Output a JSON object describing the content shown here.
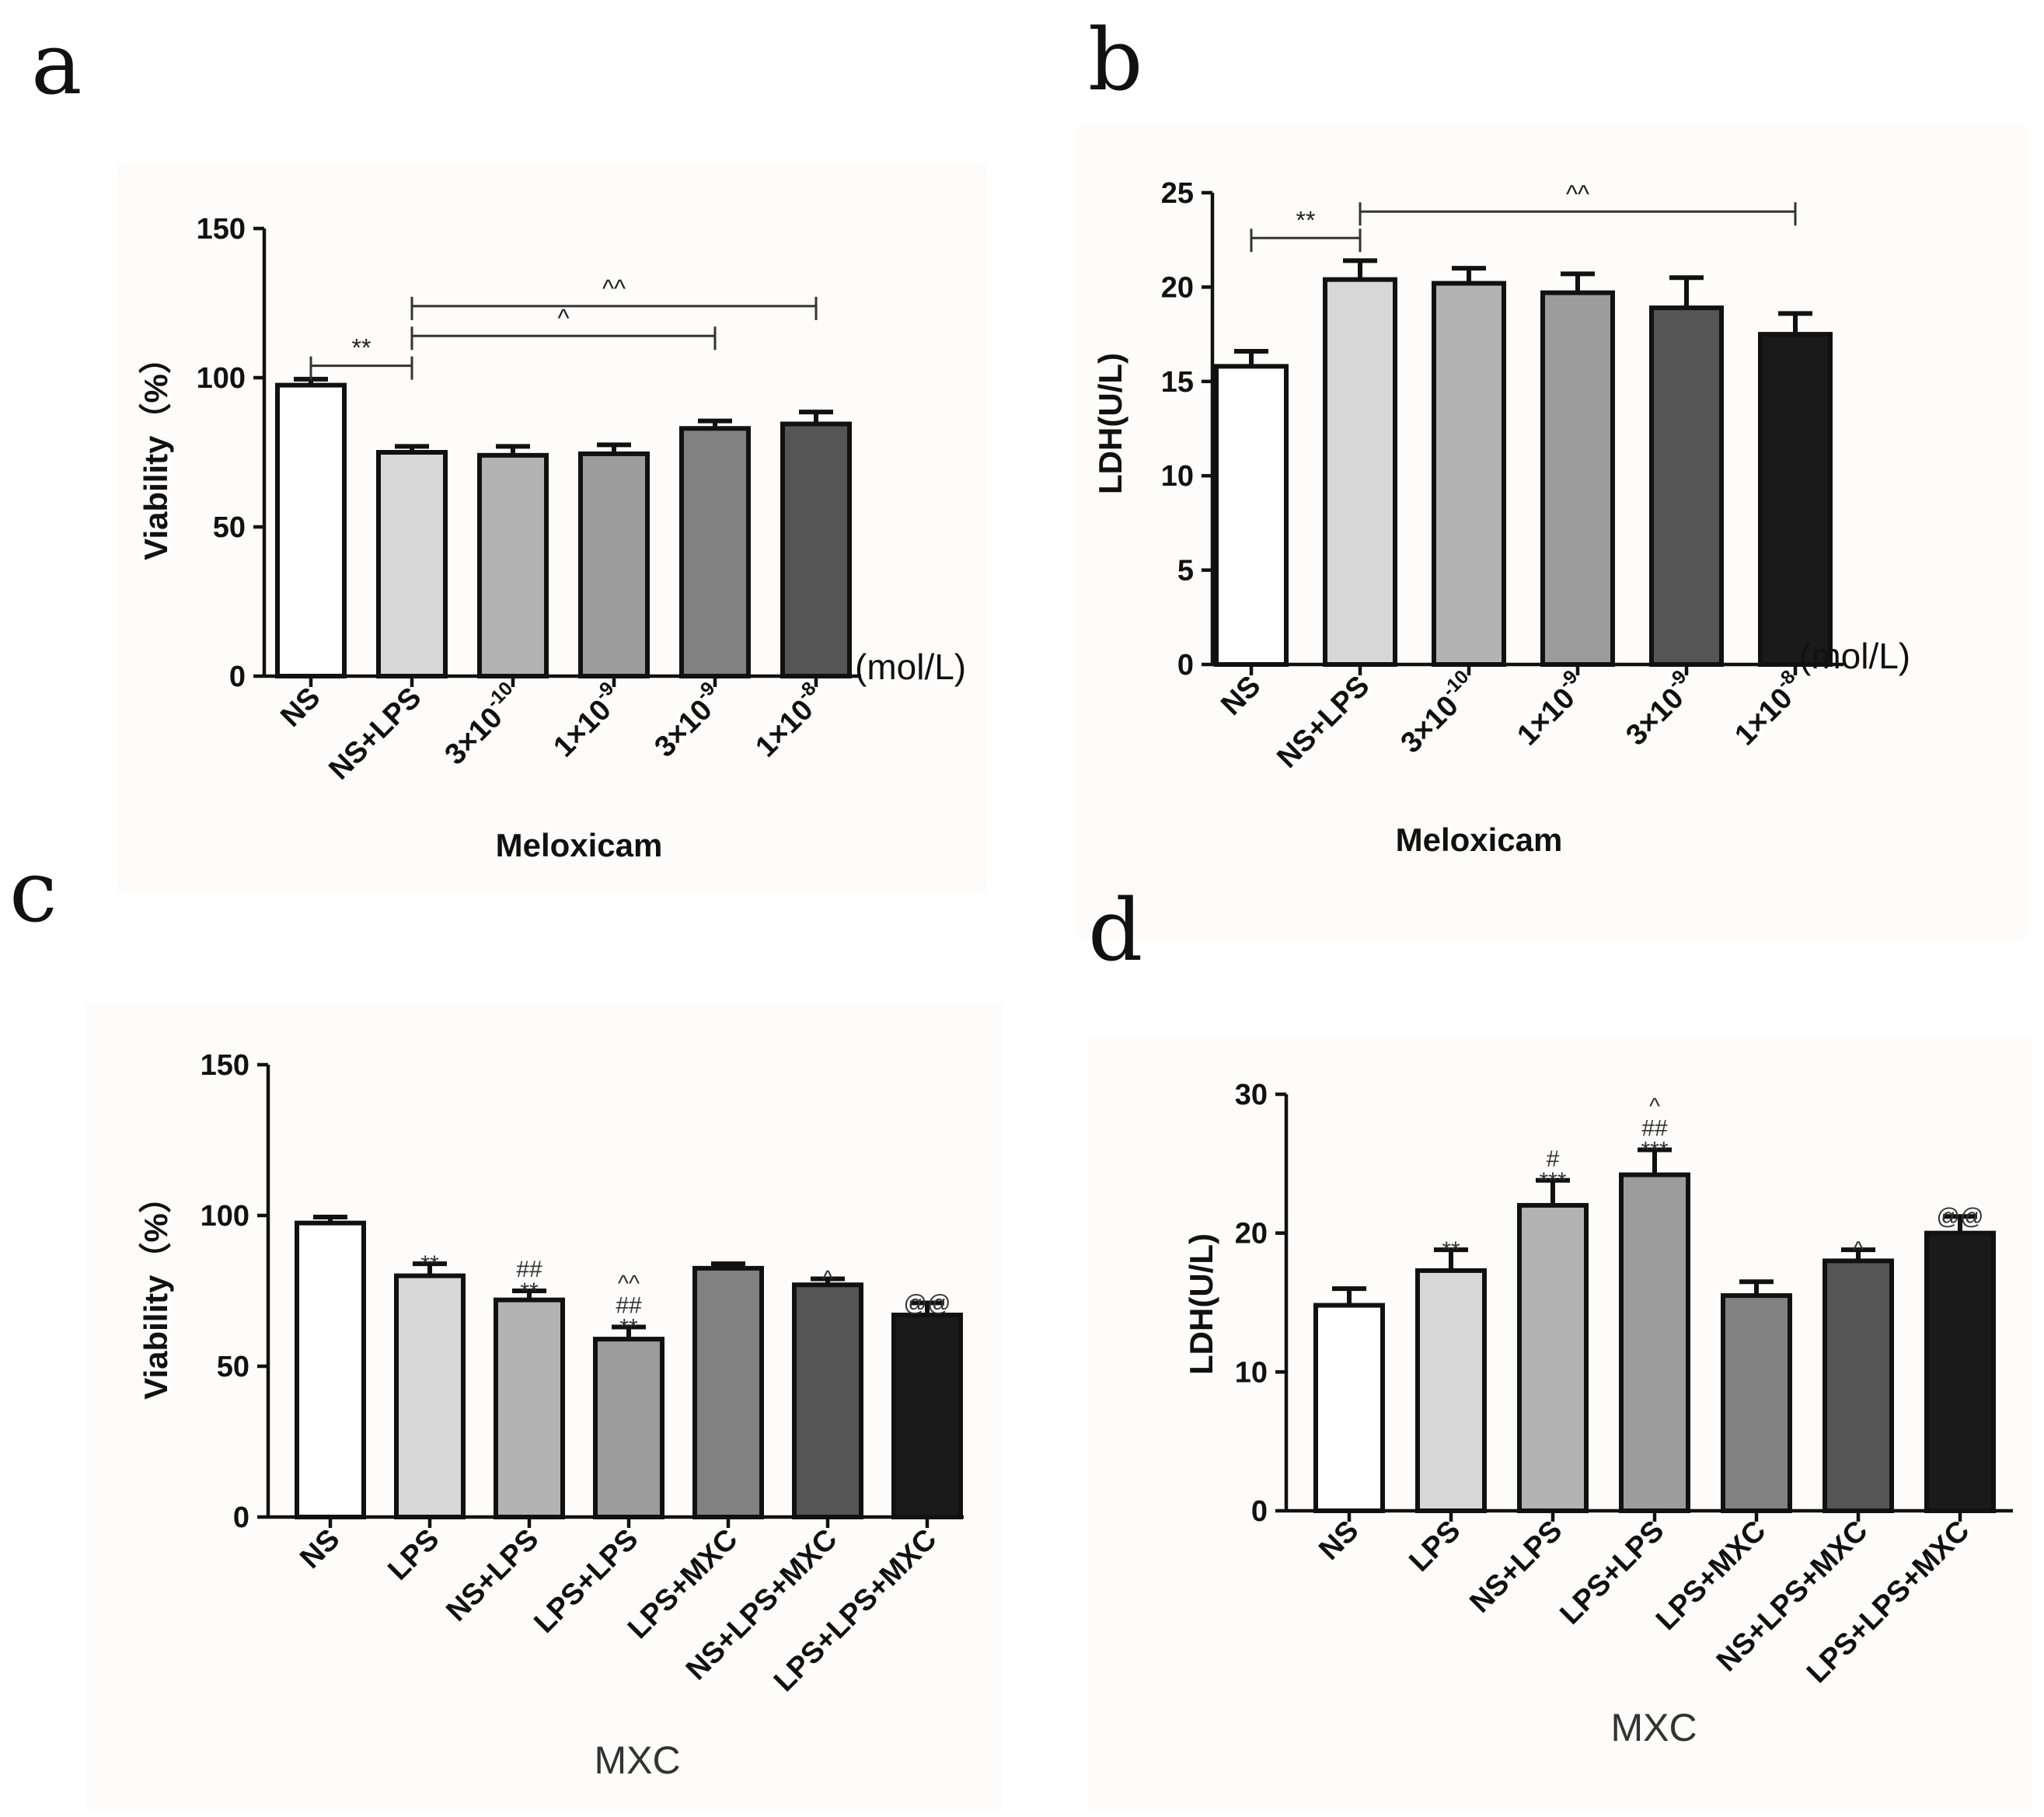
{
  "figure": {
    "panels": [
      "a",
      "b",
      "c",
      "d"
    ]
  },
  "chart_data": [
    {
      "id": "a",
      "type": "bar",
      "categories": [
        "NS",
        "NS+LPS",
        "3×10-10",
        "1×10-9",
        "3×10-9",
        "1×10-8"
      ],
      "category_labels": [
        {
          "base": "NS",
          "sup": ""
        },
        {
          "base": "NS+LPS",
          "sup": ""
        },
        {
          "base": "3×10",
          "sup": "-10"
        },
        {
          "base": "1×10",
          "sup": "-9"
        },
        {
          "base": "3×10",
          "sup": "-9"
        },
        {
          "base": "1×10",
          "sup": "-8"
        }
      ],
      "values": [
        97.5,
        75,
        74,
        74.5,
        83,
        84.5
      ],
      "errors": [
        2,
        2,
        3,
        3,
        2.5,
        4
      ],
      "colors": [
        "#ffffff",
        "#d7d7d7",
        "#b3b3b3",
        "#9c9c9c",
        "#818181",
        "#555555"
      ],
      "ylabel": "Viability（%）",
      "xlabel": "Meloxicam",
      "unit_label": "(mol/L)",
      "ylim": [
        0,
        150
      ],
      "yticks": [
        0,
        50,
        100,
        150
      ],
      "brackets": [
        {
          "from": 0,
          "to": 1,
          "y": 104,
          "label": "**"
        },
        {
          "from": 1,
          "to": 4,
          "y": 114,
          "label": "^"
        },
        {
          "from": 1,
          "to": 5,
          "y": 124,
          "label": "^^"
        }
      ],
      "annotations": []
    },
    {
      "id": "b",
      "type": "bar",
      "categories": [
        "NS",
        "NS+LPS",
        "3×10-10",
        "1×10-9",
        "3×10-9",
        "1×10-8"
      ],
      "category_labels": [
        {
          "base": "NS",
          "sup": ""
        },
        {
          "base": "NS+LPS",
          "sup": ""
        },
        {
          "base": "3×10",
          "sup": "-10"
        },
        {
          "base": "1×10",
          "sup": "-9"
        },
        {
          "base": "3×10",
          "sup": "-9"
        },
        {
          "base": "1×10",
          "sup": "-8"
        }
      ],
      "values": [
        15.8,
        20.4,
        20.2,
        19.7,
        18.9,
        17.5
      ],
      "errors": [
        0.8,
        1.0,
        0.8,
        1.0,
        1.6,
        1.1
      ],
      "colors": [
        "#ffffff",
        "#d7d7d7",
        "#b3b3b3",
        "#9c9c9c",
        "#555555",
        "#1a1a1a"
      ],
      "ylabel": "LDH(U/L)",
      "xlabel": "Meloxicam",
      "unit_label": "(mol/L)",
      "ylim": [
        0,
        25
      ],
      "yticks": [
        0,
        5,
        10,
        15,
        20,
        25
      ],
      "brackets": [
        {
          "from": 0,
          "to": 1,
          "y": 22.6,
          "label": "**"
        },
        {
          "from": 1,
          "to": 5,
          "y": 24.0,
          "label": "^^"
        }
      ],
      "annotations": []
    },
    {
      "id": "c",
      "type": "bar",
      "categories": [
        "NS",
        "LPS",
        "NS+LPS",
        "LPS+LPS",
        "LPS+MXC",
        "NS+LPS+MXC",
        "LPS+LPS+MXC"
      ],
      "category_labels": [
        {
          "base": "NS",
          "sup": ""
        },
        {
          "base": "LPS",
          "sup": ""
        },
        {
          "base": "NS+LPS",
          "sup": ""
        },
        {
          "base": "LPS+LPS",
          "sup": ""
        },
        {
          "base": "LPS+MXC",
          "sup": ""
        },
        {
          "base": "NS+LPS+MXC",
          "sup": ""
        },
        {
          "base": "LPS+LPS+MXC",
          "sup": ""
        }
      ],
      "values": [
        97.5,
        80,
        72,
        59,
        82.5,
        77,
        67
      ],
      "errors": [
        2,
        4,
        3,
        4,
        1.5,
        2,
        4
      ],
      "colors": [
        "#ffffff",
        "#d7d7d7",
        "#b3b3b3",
        "#9c9c9c",
        "#818181",
        "#555555",
        "#1a1a1a"
      ],
      "ylabel": "Viability（%）",
      "xlabel": "MXC",
      "unit_label": "",
      "ylim": [
        0,
        150
      ],
      "yticks": [
        0,
        50,
        100,
        150
      ],
      "brackets": [],
      "annotations": [
        {
          "bar": 1,
          "lines": [
            "**"
          ]
        },
        {
          "bar": 2,
          "lines": [
            "##",
            "**"
          ]
        },
        {
          "bar": 3,
          "lines": [
            "^^",
            "##",
            "**"
          ]
        },
        {
          "bar": 5,
          "lines": [
            "^"
          ]
        },
        {
          "bar": 6,
          "lines": [
            "@@"
          ]
        }
      ]
    },
    {
      "id": "d",
      "type": "bar",
      "categories": [
        "NS",
        "LPS",
        "NS+LPS",
        "LPS+LPS",
        "LPS+MXC",
        "NS+LPS+MXC",
        "LPS+LPS+MXC"
      ],
      "category_labels": [
        {
          "base": "NS",
          "sup": ""
        },
        {
          "base": "LPS",
          "sup": ""
        },
        {
          "base": "NS+LPS",
          "sup": ""
        },
        {
          "base": "LPS+LPS",
          "sup": ""
        },
        {
          "base": "LPS+MXC",
          "sup": ""
        },
        {
          "base": "NS+LPS+MXC",
          "sup": ""
        },
        {
          "base": "LPS+LPS+MXC",
          "sup": ""
        }
      ],
      "values": [
        14.8,
        17.3,
        22.0,
        24.2,
        15.5,
        18.0,
        20.0
      ],
      "errors": [
        1.2,
        1.5,
        1.8,
        1.8,
        1.0,
        0.8,
        1.2
      ],
      "colors": [
        "#ffffff",
        "#d7d7d7",
        "#b3b3b3",
        "#9c9c9c",
        "#818181",
        "#555555",
        "#1a1a1a"
      ],
      "ylabel": "LDH(U/L)",
      "xlabel": "MXC",
      "unit_label": "",
      "ylim": [
        0,
        30
      ],
      "yticks": [
        0,
        10,
        20,
        30
      ],
      "brackets": [],
      "annotations": [
        {
          "bar": 1,
          "lines": [
            "**"
          ]
        },
        {
          "bar": 2,
          "lines": [
            "#",
            "***"
          ]
        },
        {
          "bar": 3,
          "lines": [
            "^",
            "##",
            "***"
          ]
        },
        {
          "bar": 5,
          "lines": [
            "^"
          ]
        },
        {
          "bar": 6,
          "lines": [
            "@@"
          ]
        }
      ]
    }
  ]
}
